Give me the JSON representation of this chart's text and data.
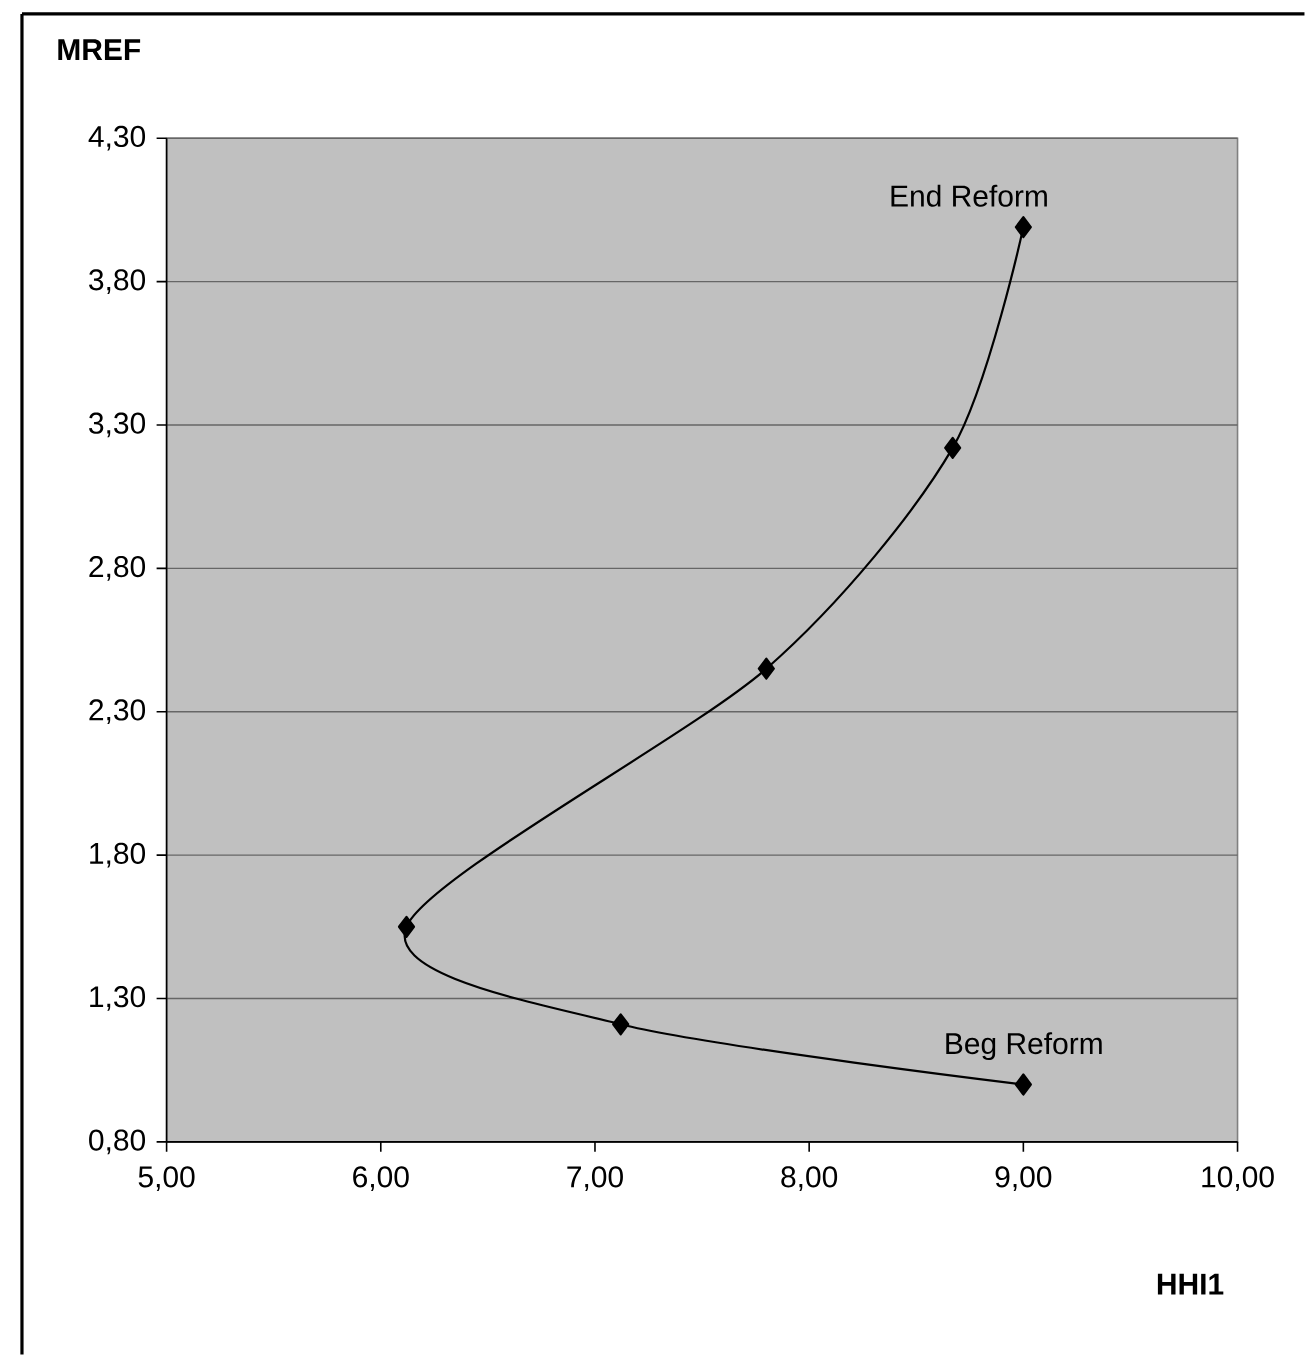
{
  "chart_data": {
    "type": "line",
    "xlabel": "HHI1",
    "ylabel": "MREF",
    "series": [
      {
        "color": "#000000",
        "x": [
          9.0,
          7.12,
          6.12,
          7.8,
          8.67,
          9.0
        ],
        "values": [
          1.0,
          1.21,
          1.55,
          2.45,
          3.22,
          3.99
        ]
      }
    ],
    "xlim": [
      5,
      10
    ],
    "ylim": [
      0.8,
      4.3
    ],
    "xticks": [
      {
        "value": 5,
        "label": "5,00"
      },
      {
        "value": 6,
        "label": "6,00"
      },
      {
        "value": 7,
        "label": "7,00"
      },
      {
        "value": 8,
        "label": "8,00"
      },
      {
        "value": 9,
        "label": "9,00"
      },
      {
        "value": 10,
        "label": "10,00"
      }
    ],
    "yticks": [
      {
        "value": 0.8,
        "label": "0,80"
      },
      {
        "value": 1.3,
        "label": "1,30"
      },
      {
        "value": 1.8,
        "label": "1,80"
      },
      {
        "value": 2.3,
        "label": "2,30"
      },
      {
        "value": 2.8,
        "label": "2,80"
      },
      {
        "value": 3.3,
        "label": "3,30"
      },
      {
        "value": 3.8,
        "label": "3,80"
      },
      {
        "value": 4.3,
        "label": "4,30"
      }
    ],
    "annotations": [
      {
        "text": "End Reform",
        "x": 9.0,
        "y": 3.99
      },
      {
        "text": "Beg Reform",
        "x": 9.0,
        "y": 1.0
      }
    ],
    "grid": "y",
    "marker": "diamond",
    "line_style": "solid"
  }
}
